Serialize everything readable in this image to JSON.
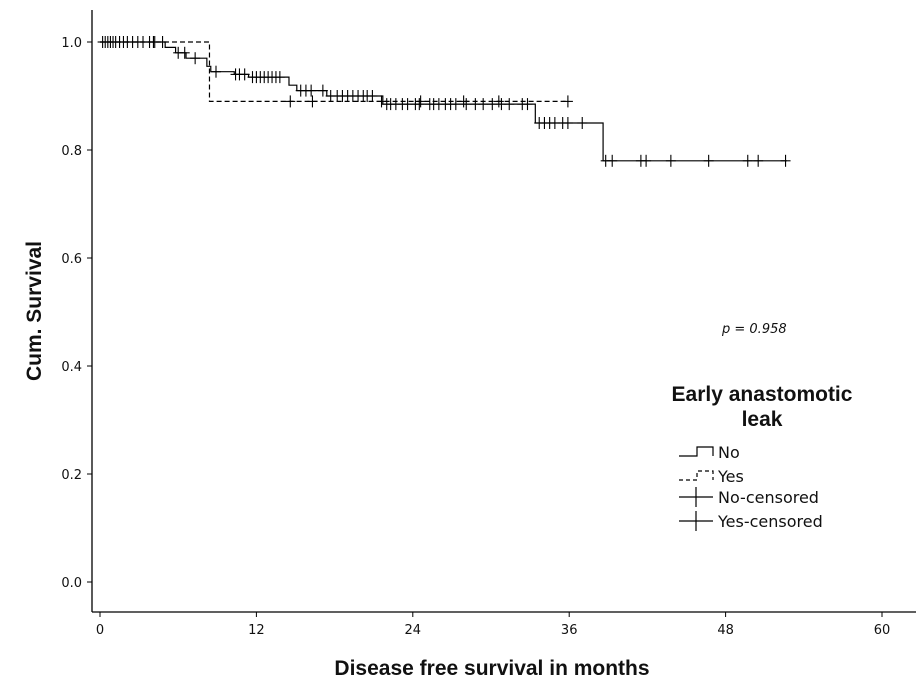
{
  "chart_data": {
    "type": "line",
    "title": "",
    "xlabel": "Disease free survival in months",
    "ylabel": "Cum. Survival",
    "xlim": [
      0,
      60
    ],
    "ylim": [
      0,
      1
    ],
    "x_ticks": [
      "0",
      "12",
      "24",
      "36",
      "48",
      "60"
    ],
    "y_ticks": [
      "0.0",
      "0.2",
      "0.4",
      "0.6",
      "0.8",
      "1.0"
    ],
    "grid": false,
    "annotation": "p = 0.958",
    "legend": {
      "title_lines": [
        "Early anastomotic",
        "leak"
      ],
      "position": "right",
      "entries": [
        "No",
        "Yes",
        "No-censored",
        "Yes-censored"
      ]
    },
    "series": [
      {
        "name": "No",
        "style": "solid",
        "steps": [
          [
            0,
            1.0
          ],
          [
            5.0,
            0.99
          ],
          [
            5.8,
            0.98
          ],
          [
            6.6,
            0.97
          ],
          [
            8.2,
            0.955
          ],
          [
            8.5,
            0.945
          ],
          [
            10.3,
            0.94
          ],
          [
            11.4,
            0.935
          ],
          [
            14.5,
            0.92
          ],
          [
            15.1,
            0.91
          ],
          [
            17.4,
            0.9
          ],
          [
            21.7,
            0.885
          ],
          [
            33.4,
            0.85
          ],
          [
            38.6,
            0.78
          ],
          [
            52.7,
            0.78
          ]
        ],
        "censored": [
          0.2,
          0.4,
          0.6,
          0.8,
          1.0,
          1.2,
          1.5,
          1.8,
          2.1,
          2.5,
          2.9,
          3.3,
          3.8,
          4.2,
          4.8,
          6.0,
          6.5,
          7.3,
          8.9,
          10.4,
          10.7,
          11.1,
          11.7,
          12.0,
          12.3,
          12.6,
          12.9,
          13.2,
          13.5,
          13.8,
          15.4,
          15.8,
          16.2,
          17.1,
          17.7,
          18.2,
          18.6,
          19.0,
          19.4,
          19.8,
          20.2,
          20.5,
          20.9,
          22.0,
          22.3,
          22.7,
          23.2,
          23.6,
          24.2,
          24.5,
          25.3,
          25.6,
          26.0,
          26.5,
          26.9,
          27.3,
          28.1,
          28.8,
          29.4,
          30.1,
          30.8,
          31.4,
          32.4,
          32.8,
          33.7,
          34.1,
          34.5,
          34.9,
          35.5,
          35.9,
          37.0,
          38.8,
          39.3,
          41.5,
          41.9,
          43.8,
          46.7,
          49.7,
          50.5,
          52.6
        ]
      },
      {
        "name": "Yes",
        "style": "dashed",
        "steps": [
          [
            0,
            1.0
          ],
          [
            8.4,
            1.0
          ],
          [
            8.4,
            0.89
          ],
          [
            35.9,
            0.89
          ]
        ],
        "censored": [
          4.1,
          14.6,
          16.3,
          21.6,
          24.6,
          27.9,
          30.6,
          35.9
        ]
      }
    ]
  }
}
